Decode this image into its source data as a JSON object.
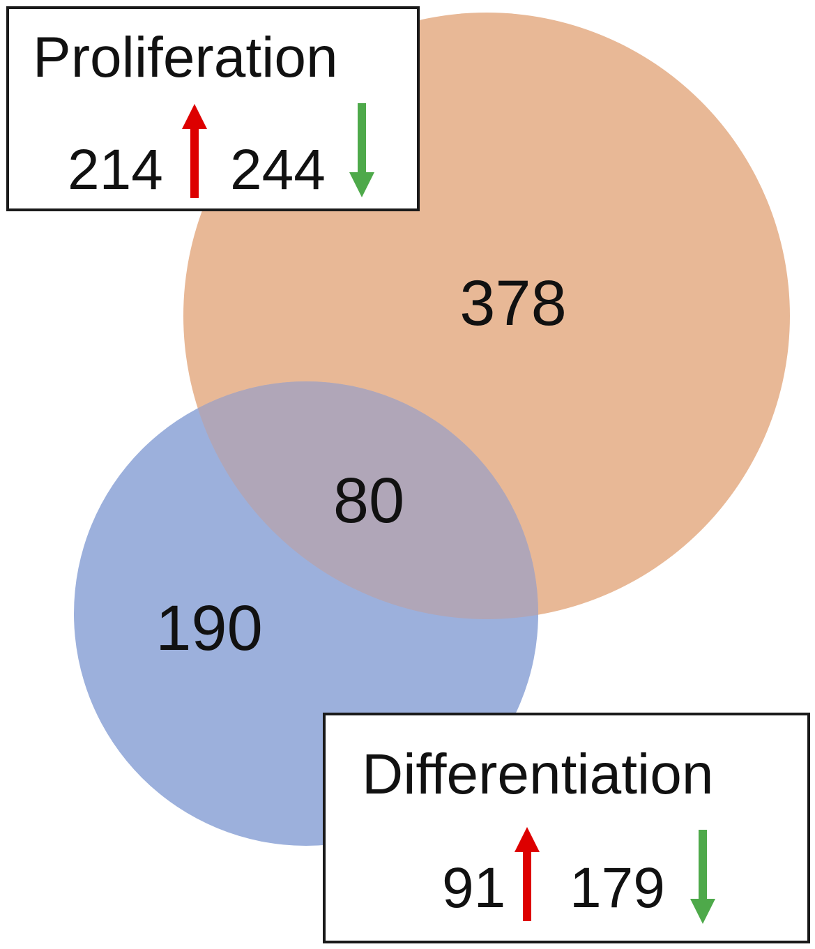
{
  "diagram": {
    "type": "venn",
    "sets": [
      {
        "name": "Proliferation",
        "color": "#e8b896",
        "only_count": "378",
        "up_count": "214",
        "down_count": "244"
      },
      {
        "name": "Differentiation",
        "color": "#9cb0dc",
        "only_count": "190",
        "up_count": "91",
        "down_count": "179"
      }
    ],
    "overlap_count": "80",
    "overlap_color": "#b0a6b8",
    "up_arrow_color": "#dd0000",
    "down_arrow_color": "#4ea94a",
    "up_icon": "arrow-up-icon",
    "down_icon": "arrow-down-icon"
  }
}
